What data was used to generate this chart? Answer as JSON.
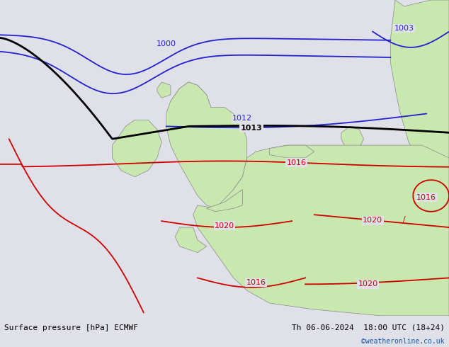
{
  "title_left": "Surface pressure [hPa] ECMWF",
  "title_right": "Th 06-06-2024  18:00 UTC (18+24)",
  "credit": "©weatheronline.co.uk",
  "bg_color": "#e0e0e8",
  "land_color": "#c8e8b0",
  "border_color": "#888888",
  "figsize": [
    6.34,
    4.9
  ],
  "dpi": 100,
  "font_color_credit": "#1155aa"
}
